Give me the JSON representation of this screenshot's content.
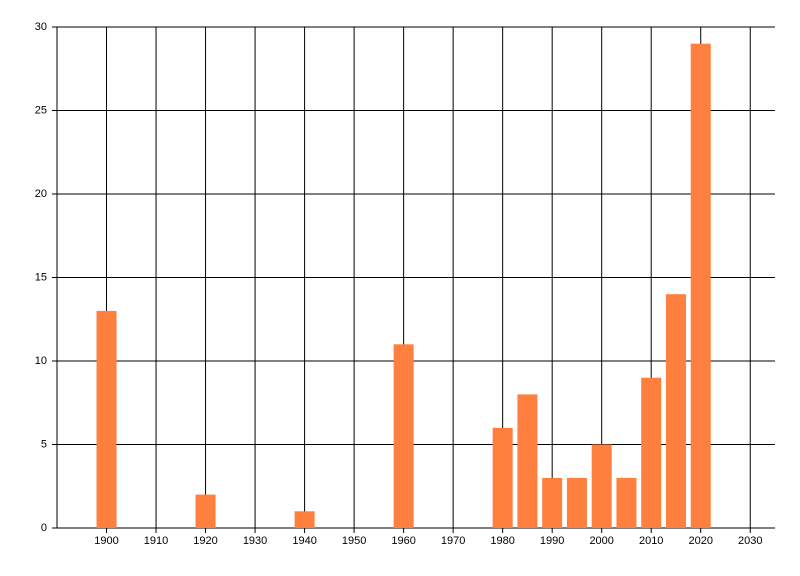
{
  "chart_data": {
    "type": "bar",
    "x": [
      1900,
      1920,
      1940,
      1960,
      1980,
      1985,
      1990,
      1995,
      2000,
      2005,
      2010,
      2015,
      2020
    ],
    "values": [
      13,
      2,
      1,
      11,
      6,
      8,
      3,
      3,
      5,
      3,
      9,
      14,
      29
    ],
    "color": "#ff7f3f",
    "xlim": [
      1890,
      2035
    ],
    "xticks": [
      1900,
      1910,
      1920,
      1930,
      1940,
      1950,
      1960,
      1970,
      1980,
      1990,
      2000,
      2010,
      2020,
      2030
    ],
    "ylim": [
      0,
      30
    ],
    "yticks": [
      0,
      5,
      10,
      15,
      20,
      25,
      30
    ],
    "grid": true
  }
}
